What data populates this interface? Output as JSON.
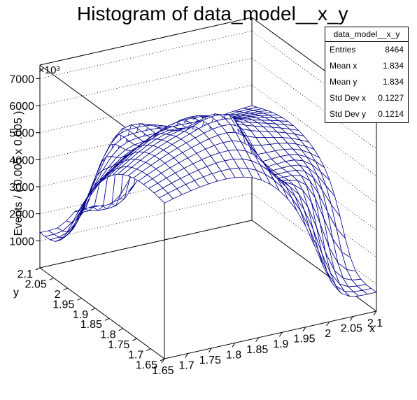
{
  "chart_data": {
    "type": "surface",
    "title": "Histogram of data_model__x_y",
    "xlabel": "x",
    "ylabel": "y",
    "zlabel": "Events / ( 0.005 x 0.005 )",
    "z_multiplier": "×10³",
    "xlim": [
      1.65,
      2.1
    ],
    "ylim": [
      1.65,
      2.1
    ],
    "zlim": [
      0,
      7500
    ],
    "x_ticks": [
      "1.65",
      "1.7",
      "1.75",
      "1.8",
      "1.85",
      "1.9",
      "1.95",
      "2",
      "2.05",
      "2.1"
    ],
    "y_ticks": [
      "1.65",
      "1.7",
      "1.75",
      "1.8",
      "1.85",
      "1.9",
      "1.95",
      "2",
      "2.05",
      "2.1"
    ],
    "z_ticks": [
      "1000",
      "2000",
      "3000",
      "4000",
      "5000",
      "6000",
      "7000"
    ],
    "surface_color": "#00008b",
    "description_points": [
      {
        "x": 1.65,
        "y": 2.1,
        "z": 1300
      },
      {
        "x": 1.78,
        "y": 2.1,
        "z": 1800
      },
      {
        "x": 1.8,
        "y": 2.0,
        "z": 5300
      },
      {
        "x": 1.85,
        "y": 1.85,
        "z": 6300
      },
      {
        "x": 1.85,
        "y": 1.8,
        "z": 7100
      },
      {
        "x": 1.95,
        "y": 1.8,
        "z": 4600
      },
      {
        "x": 2.1,
        "y": 1.65,
        "z": 700
      }
    ]
  },
  "stats": {
    "name": "data_model__x_y",
    "rows": [
      {
        "label": "Entries",
        "value": "8464"
      },
      {
        "label": "Mean x",
        "value": "1.834"
      },
      {
        "label": "Mean y",
        "value": "1.834"
      },
      {
        "label": "Std Dev x",
        "value": "0.1227"
      },
      {
        "label": "Std Dev y",
        "value": "0.1214"
      }
    ]
  }
}
